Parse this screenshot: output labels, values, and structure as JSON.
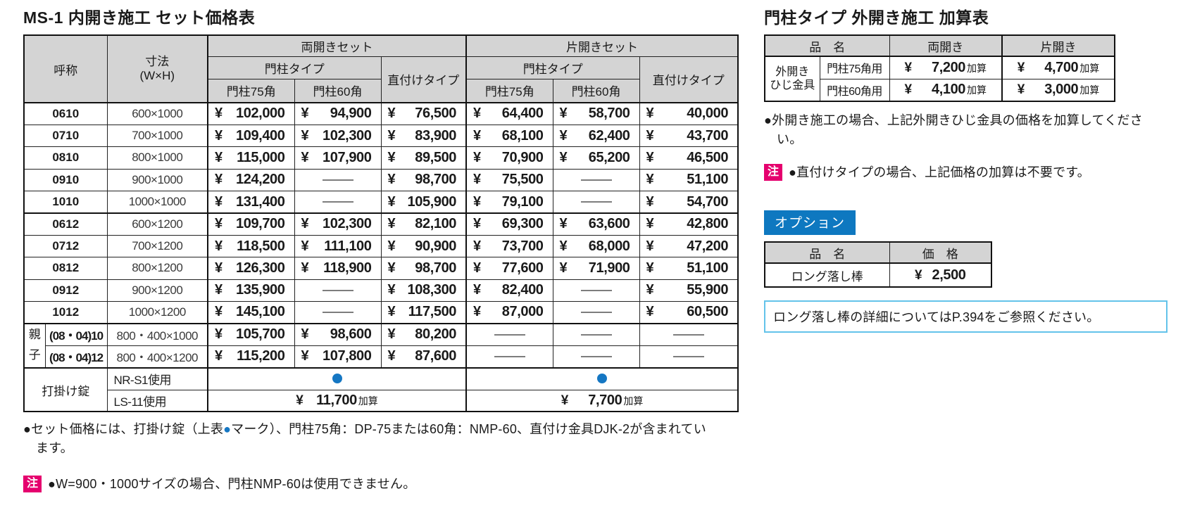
{
  "colors": {
    "accent_blue": "#0e78c0",
    "dot_blue": "#1577c3",
    "warn_magenta": "#e5006e",
    "ref_cyan": "#63c3ea"
  },
  "left_panel": {
    "title": "MS-1 内開き施工 セット価格表",
    "table": {
      "yen": "¥",
      "header": {
        "name": "呼称",
        "size_line1": "寸法",
        "size_line2": "(W×H)",
        "double_set": "両開きセット",
        "single_set": "片開きセット",
        "post_type": "門柱タイプ",
        "post_75": "門柱75角",
        "post_60": "門柱60角",
        "direct_type": "直付けタイプ"
      },
      "rows": [
        {
          "name": "0610",
          "size": "600×1000",
          "prices": [
            "102,000",
            "94,900",
            "76,500",
            "64,400",
            "58,700",
            "40,000"
          ]
        },
        {
          "name": "0710",
          "size": "700×1000",
          "prices": [
            "109,400",
            "102,300",
            "83,900",
            "68,100",
            "62,400",
            "43,700"
          ]
        },
        {
          "name": "0810",
          "size": "800×1000",
          "prices": [
            "115,000",
            "107,900",
            "89,500",
            "70,900",
            "65,200",
            "46,500"
          ]
        },
        {
          "name": "0910",
          "size": "900×1000",
          "prices": [
            "124,200",
            null,
            "98,700",
            "75,500",
            null,
            "51,100"
          ]
        },
        {
          "name": "1010",
          "size": "1000×1000",
          "prices": [
            "131,400",
            null,
            "105,900",
            "79,100",
            null,
            "54,700"
          ]
        },
        {
          "name": "0612",
          "size": "600×1200",
          "prices": [
            "109,700",
            "102,300",
            "82,100",
            "69,300",
            "63,600",
            "42,800"
          ],
          "group_start": true
        },
        {
          "name": "0712",
          "size": "700×1200",
          "prices": [
            "118,500",
            "111,100",
            "90,900",
            "73,700",
            "68,000",
            "47,200"
          ]
        },
        {
          "name": "0812",
          "size": "800×1200",
          "prices": [
            "126,300",
            "118,900",
            "98,700",
            "77,600",
            "71,900",
            "51,100"
          ]
        },
        {
          "name": "0912",
          "size": "900×1200",
          "prices": [
            "135,900",
            null,
            "108,300",
            "82,400",
            null,
            "55,900"
          ]
        },
        {
          "name": "1012",
          "size": "1000×1200",
          "prices": [
            "145,100",
            null,
            "117,500",
            "87,000",
            null,
            "60,500"
          ]
        }
      ],
      "oyako": {
        "label_top": "親",
        "label_bottom": "子",
        "rows": [
          {
            "name": "(08・04)10",
            "size": "800・400×1000",
            "prices": [
              "105,700",
              "98,600",
              "80,200",
              null,
              null,
              null
            ]
          },
          {
            "name": "(08・04)12",
            "size": "800・400×1200",
            "prices": [
              "115,200",
              "107,800",
              "87,600",
              null,
              null,
              null
            ]
          }
        ]
      },
      "lock": {
        "label": "打掛け錠",
        "rows": [
          {
            "name": "NR-S1使用",
            "double": {
              "type": "dot"
            },
            "single": {
              "type": "dot"
            }
          },
          {
            "name": "LS-11使用",
            "double": {
              "type": "price",
              "amount": "11,700",
              "suffix": "加算"
            },
            "single": {
              "type": "price",
              "amount": "7,700",
              "suffix": "加算"
            }
          }
        ]
      }
    },
    "notes": {
      "note1_before": "●セット価格には、打掛け錠（上表",
      "note1_dot": "●",
      "note1_after": "マーク）、門柱75角：DP-75または60角：NMP-60、直付け金具DJK-2が含まれています。",
      "note2_badge": "注",
      "note2_text": "●W=900・1000サイズの場合、門柱NMP-60は使用できません。"
    }
  },
  "right_panel": {
    "title": "門柱タイプ 外開き施工 加算表",
    "addition_table": {
      "yen": "¥",
      "header": {
        "product_name": "品　名",
        "double": "両開き",
        "single": "片開き"
      },
      "group_label_line1": "外開き",
      "group_label_line2": "ひじ金具",
      "rows": [
        {
          "name": "門柱75角用",
          "double_amount": "7,200",
          "single_amount": "4,700",
          "suffix": "加算"
        },
        {
          "name": "門柱60角用",
          "double_amount": "4,100",
          "single_amount": "3,000",
          "suffix": "加算"
        }
      ]
    },
    "note1": "●外開き施工の場合、上記外開きひじ金具の価格を加算してください。",
    "note2_badge": "注",
    "note2_text": "●直付けタイプの場合、上記価格の加算は不要です。",
    "option_label": "オプション",
    "option_table": {
      "yen": "¥",
      "header": {
        "product_name": "品　名",
        "price": "価　格"
      },
      "rows": [
        {
          "name": "ロング落し棒",
          "price_amount": "2,500"
        }
      ]
    },
    "reference_note": "ロング落し棒の詳細についてはP.394をご参照ください。"
  }
}
